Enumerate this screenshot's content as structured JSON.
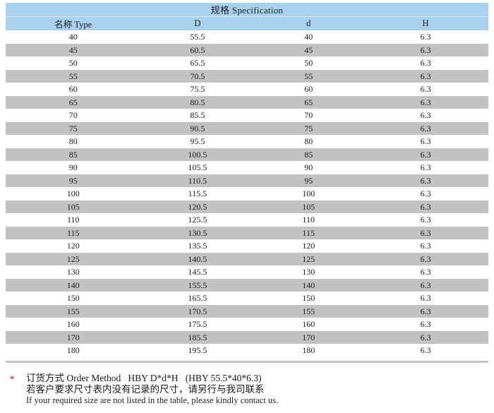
{
  "table": {
    "title": "规格 Specification",
    "columns": [
      "名称 Type",
      "D",
      "d",
      "H"
    ],
    "rows": [
      [
        "40",
        "55.5",
        "40",
        "6.3"
      ],
      [
        "45",
        "60.5",
        "45",
        "6.3"
      ],
      [
        "50",
        "65.5",
        "50",
        "6.3"
      ],
      [
        "55",
        "70.5",
        "55",
        "6.3"
      ],
      [
        "60",
        "75.5",
        "60",
        "6.3"
      ],
      [
        "65",
        "80.5",
        "65",
        "6.3"
      ],
      [
        "70",
        "85.5",
        "70",
        "6.3"
      ],
      [
        "75",
        "90.5",
        "75",
        "6.3"
      ],
      [
        "80",
        "95.5",
        "80",
        "6.3"
      ],
      [
        "85",
        "100.5",
        "85",
        "6.3"
      ],
      [
        "90",
        "105.5",
        "90",
        "6.3"
      ],
      [
        "95",
        "110.5",
        "95",
        "6.3"
      ],
      [
        "100",
        "115.5",
        "100",
        "6.3"
      ],
      [
        "105",
        "120.5",
        "105",
        "6.3"
      ],
      [
        "110",
        "125.5",
        "110",
        "6.3"
      ],
      [
        "115",
        "130.5",
        "115",
        "6.3"
      ],
      [
        "120",
        "135.5",
        "120",
        "6.3"
      ],
      [
        "125",
        "140.5",
        "125",
        "6.3"
      ],
      [
        "130",
        "145.5",
        "130",
        "6.3"
      ],
      [
        "140",
        "155.5",
        "140",
        "6.3"
      ],
      [
        "150",
        "165.5",
        "150",
        "6.3"
      ],
      [
        "155",
        "170.5",
        "155",
        "6.3"
      ],
      [
        "160",
        "175.5",
        "160",
        "6.3"
      ],
      [
        "170",
        "185.5",
        "170",
        "6.3"
      ],
      [
        "180",
        "195.5",
        "180",
        "6.3"
      ]
    ],
    "column_widths_pct": [
      28,
      23.5,
      22.5,
      26
    ]
  },
  "footnote": {
    "marker": "*",
    "line1": "订货方式 Order Method   HBY D*d*H   (HBY 55.5*40*6.3)",
    "line2": "若客户要求尺寸表内没有记录的尺寸，请另行与我司联系",
    "line3": "If your required size are not listed in the table, please kindly contact us."
  },
  "colors": {
    "header_blue": "#a7d1ec",
    "row_gray": "#c2c2c2",
    "rule_gray": "#c6c6c6",
    "accent_red": "#c03a32",
    "text": "#1b1b1b"
  }
}
